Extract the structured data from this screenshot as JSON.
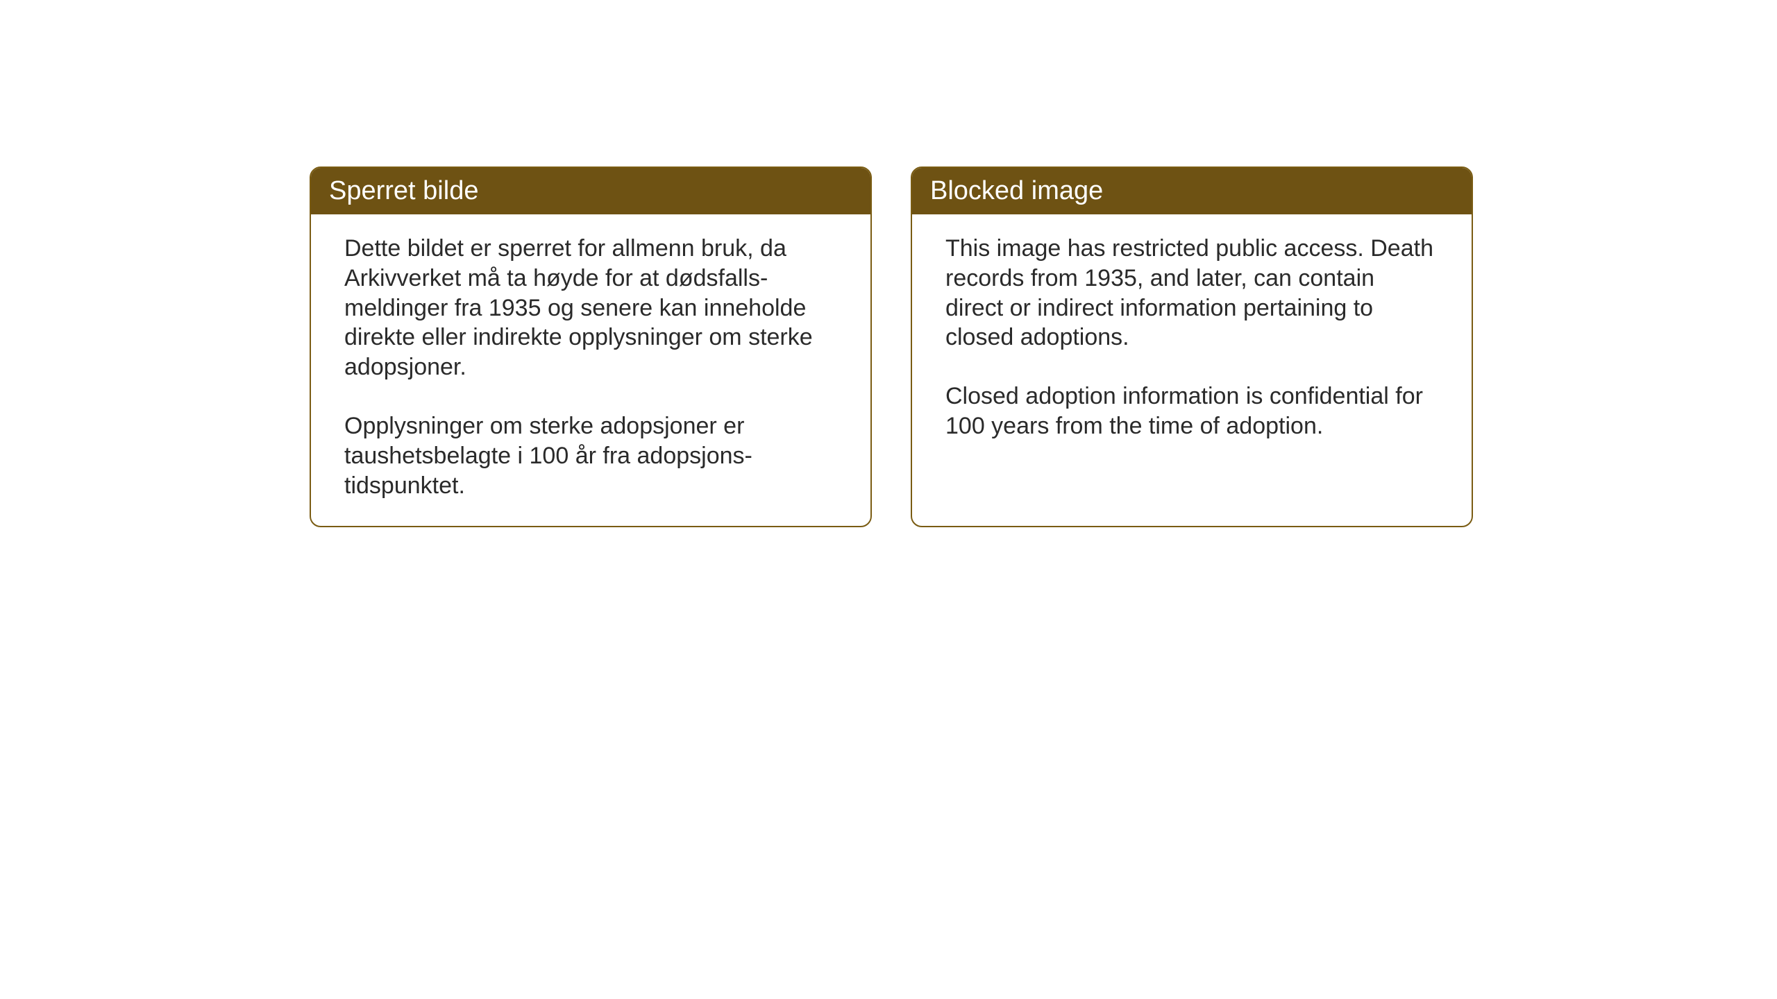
{
  "layout": {
    "background_color": "#ffffff",
    "card_border_color": "#7a5c13",
    "card_border_radius": 16,
    "header_bg_color": "#6e5213",
    "header_text_color": "#ffffff",
    "body_text_color": "#2a2a2a",
    "header_fontsize": 38,
    "body_fontsize": 34
  },
  "cards": {
    "norwegian": {
      "title": "Sperret bilde",
      "paragraph1": "Dette bildet er sperret for allmenn bruk, da Arkivverket må ta høyde for at dødsfalls-meldinger fra 1935 og senere kan inneholde direkte eller indirekte opplysninger om sterke adopsjoner.",
      "paragraph2": "Opplysninger om sterke adopsjoner er taushetsbelagte i 100 år fra adopsjons-tidspunktet."
    },
    "english": {
      "title": "Blocked image",
      "paragraph1": "This image has restricted public access. Death records from 1935, and later, can contain direct or indirect information pertaining to closed adoptions.",
      "paragraph2": "Closed adoption information is confidential for 100 years from the time of adoption."
    }
  }
}
